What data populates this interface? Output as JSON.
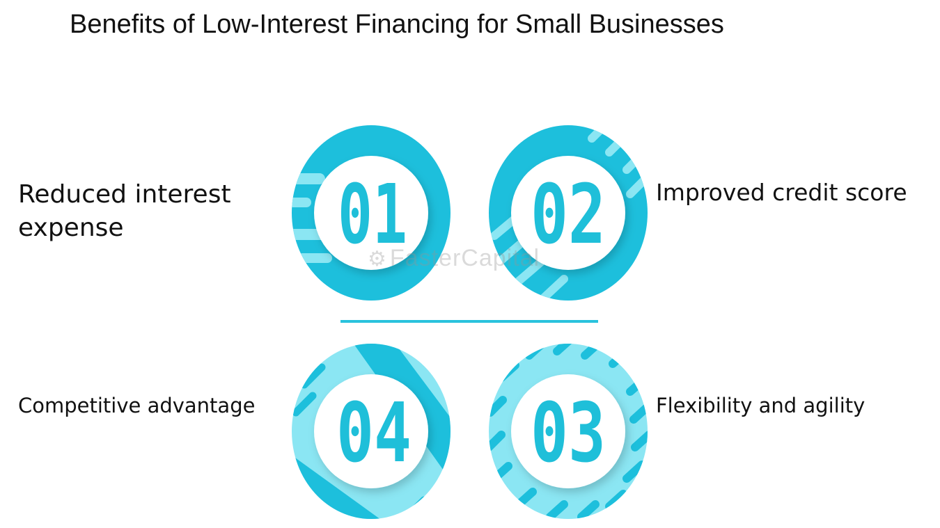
{
  "title": "Benefits of Low-Interest Financing for Small Businesses",
  "items": [
    {
      "number": "01",
      "label": "Reduced interest expense"
    },
    {
      "number": "02",
      "label": "Improved credit score"
    },
    {
      "number": "03",
      "label": "Flexibility and agility"
    },
    {
      "number": "04",
      "label": "Competitive advantage"
    }
  ],
  "watermark": "FasterCapital",
  "colors": {
    "ring_dark": "#1dbfdc",
    "ring_light": "#8be6f3",
    "number": "#1fbfd9",
    "divider": "#29c2dd",
    "text": "#111111"
  }
}
